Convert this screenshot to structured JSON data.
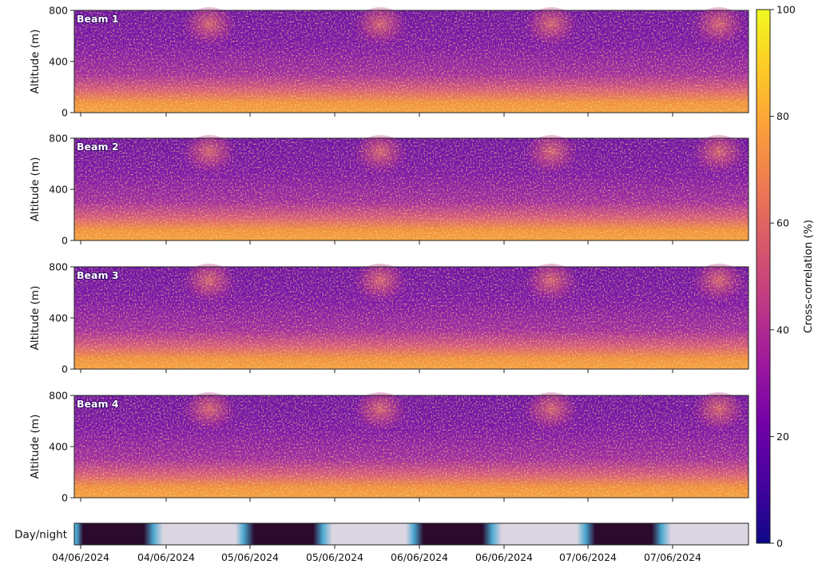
{
  "chart_data": {
    "type": "heatmap",
    "xlabel": "",
    "ylabel": "Altitude (m)",
    "ylim": [
      0,
      800
    ],
    "y_ticks": [
      "0",
      "400",
      "800"
    ],
    "x_tick_labels": [
      "04/06/2024",
      "04/06/2024",
      "05/06/2024",
      "05/06/2024",
      "06/06/2024",
      "06/06/2024",
      "07/06/2024",
      "07/06/2024"
    ],
    "panels": [
      {
        "label": "Beam 1"
      },
      {
        "label": "Beam 2"
      },
      {
        "label": "Beam 3"
      },
      {
        "label": "Beam 4"
      }
    ],
    "day_night": {
      "label": "Day/night",
      "colors": {
        "night": "#2a0b2e",
        "day": "#dcd6e2",
        "twilight": "#4aa8d0"
      }
    },
    "colorbar": {
      "label": "Cross-correlation (%)",
      "range": [
        0,
        100
      ],
      "ticks": [
        "0",
        "20",
        "40",
        "60",
        "80",
        "100"
      ],
      "colormap": "plasma",
      "stops": [
        "#0d0887",
        "#46039f",
        "#7201a8",
        "#9c179e",
        "#bd3786",
        "#d8576b",
        "#ed7953",
        "#fb9f3a",
        "#fdca26",
        "#f0f921"
      ]
    },
    "grid": false
  }
}
